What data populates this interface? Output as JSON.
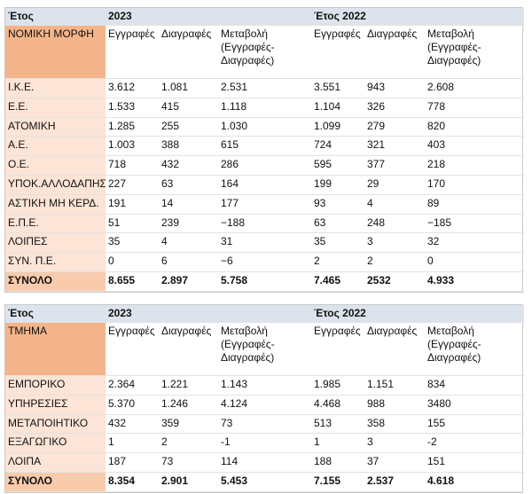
{
  "tables": [
    {
      "header": [
        "Έτος",
        "2023",
        "Έτος 2022"
      ],
      "columns": [
        "ΝΟΜΙΚΗ ΜΟΡΦΗ",
        "Εγγραφές",
        "Διαγραφές",
        "Μεταβολή (Εγγραφές-Διαγραφές)",
        "Εγγραφές",
        "Διαγραφές",
        "Μεταβολή (Εγγραφές-Διαγραφές)"
      ],
      "rows": [
        [
          "Ι.Κ.Ε.",
          "3.612",
          "1.081",
          "2.531",
          "3.551",
          "943",
          "2.608"
        ],
        [
          "Ε.Ε.",
          "1.533",
          "415",
          "1.118",
          "1.104",
          "326",
          "778"
        ],
        [
          "ΑΤΟΜΙΚΗ",
          "1.285",
          "255",
          "1.030",
          "1.099",
          "279",
          "820"
        ],
        [
          "Α.Ε.",
          "1.003",
          "388",
          "615",
          "724",
          "321",
          "403"
        ],
        [
          "Ο.Ε.",
          "718",
          "432",
          "286",
          "595",
          "377",
          "218"
        ],
        [
          "ΥΠΟΚ.ΑΛΛΟΔΑΠΗΣ",
          "227",
          "63",
          "164",
          "199",
          "29",
          "170"
        ],
        [
          "ΑΣΤΙΚΗ ΜΗ ΚΕΡΔ.",
          "191",
          "14",
          "177",
          "93",
          "4",
          "89"
        ],
        [
          "Ε.Π.Ε.",
          "51",
          "239",
          "−188",
          "63",
          "248",
          "−185"
        ],
        [
          "ΛΟΙΠΕΣ",
          "35",
          "4",
          "31",
          "35",
          "3",
          "32"
        ],
        [
          "ΣΥΝ. Π.Ε.",
          "0",
          "6",
          "−6",
          "2",
          "2",
          "0"
        ],
        [
          "ΣΥΝΟΛΟ",
          "8.655",
          "2.897",
          "5.758",
          "7.465",
          "2532",
          "4.933"
        ]
      ]
    },
    {
      "header": [
        "Έτος",
        "2023",
        "Έτος 2022"
      ],
      "columns": [
        "ΤΜΗΜΑ",
        "Εγγραφές",
        "Διαγραφές",
        "Μεταβολή (Εγγραφές-Διαγραφές)",
        "Εγγραφές",
        "Διαγραφές",
        "Μεταβολή (Εγγραφές-Διαγραφές)"
      ],
      "rows": [
        [
          "ΕΜΠΟΡΙΚΟ",
          "2.364",
          "1.221",
          "1.143",
          "1.985",
          "1.151",
          "834"
        ],
        [
          "ΥΠΗΡΕΣΙΕΣ",
          "5.370",
          "1.246",
          "4.124",
          "4.468",
          "988",
          "3480"
        ],
        [
          "ΜΕΤΑΠΟΙΗΤΙΚΟ",
          "432",
          "359",
          "73",
          "513",
          "358",
          "155"
        ],
        [
          "ΕΞΑΓΩΓΙΚΟ",
          "1",
          "2",
          "-1",
          "1",
          "3",
          "-2"
        ],
        [
          "ΛΟΙΠΑ",
          "187",
          "73",
          "114",
          "188",
          "37",
          "151"
        ],
        [
          "ΣΥΝΟΛΟ",
          "8.354",
          "2.901",
          "5.453",
          "7.155",
          "2.537",
          "4.618"
        ]
      ]
    }
  ]
}
